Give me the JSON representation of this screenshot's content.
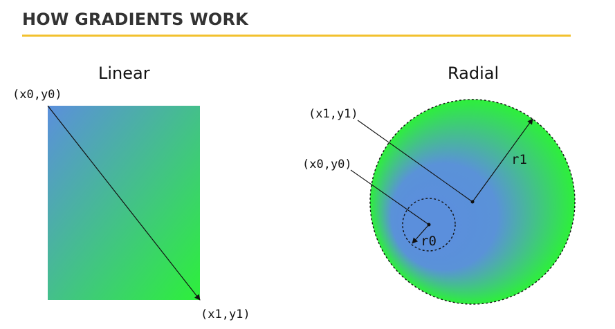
{
  "header": {
    "title": "HOW GRADIENTS WORK"
  },
  "linear": {
    "title": "Linear",
    "start_label": "(x0,y0)",
    "end_label": "(x1,y1)"
  },
  "radial": {
    "title": "Radial",
    "outer_center_label": "(x1,y1)",
    "inner_center_label": "(x0,y0)",
    "outer_radius_label": "r1",
    "inner_radius_label": "r0"
  },
  "colors": {
    "accent_rule": "#f2c12e",
    "gradient_start": "#5b8fdc",
    "gradient_end": "#2df03a"
  }
}
